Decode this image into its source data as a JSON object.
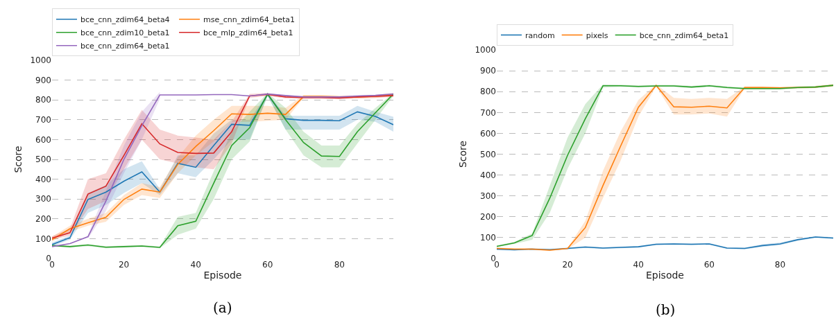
{
  "chart_data": [
    {
      "type": "line",
      "xlabel": "Episode",
      "ylabel": "Score",
      "annotations": [
        "(a)"
      ],
      "x": [
        0,
        5,
        10,
        15,
        20,
        25,
        30,
        35,
        40,
        45,
        50,
        55,
        60,
        65,
        70,
        75,
        80,
        85,
        90,
        95
      ],
      "xlim": [
        0,
        95
      ],
      "ylim": [
        0,
        1000
      ],
      "xticks": [
        0,
        20,
        40,
        60,
        80
      ],
      "yticks": [
        0,
        100,
        200,
        300,
        400,
        500,
        600,
        700,
        800,
        900,
        1000
      ],
      "grid": "y",
      "legend": "top",
      "series": [
        {
          "name": "bce_cnn_zdim64_beta4",
          "color": "#1f77b4",
          "values": [
            70,
            105,
            298,
            335,
            390,
            437,
            335,
            480,
            460,
            570,
            677,
            672,
            828,
            705,
            697,
            697,
            695,
            740,
            717,
            675
          ],
          "lower": [
            60,
            95,
            230,
            270,
            330,
            380,
            320,
            430,
            410,
            500,
            600,
            600,
            820,
            650,
            650,
            650,
            650,
            700,
            690,
            640
          ],
          "upper": [
            80,
            115,
            330,
            370,
            450,
            490,
            350,
            520,
            520,
            630,
            700,
            700,
            835,
            720,
            720,
            720,
            720,
            770,
            740,
            715
          ]
        },
        {
          "name": "mse_cnn_zdim64_beta1",
          "color": "#ff7f0e",
          "values": [
            95,
            150,
            180,
            208,
            298,
            350,
            335,
            475,
            565,
            645,
            730,
            727,
            733,
            727,
            817,
            817,
            815,
            815,
            818,
            828
          ],
          "lower": [
            85,
            135,
            165,
            185,
            270,
            320,
            305,
            430,
            520,
            590,
            690,
            690,
            695,
            700,
            810,
            810,
            808,
            808,
            810,
            820
          ],
          "upper": [
            110,
            165,
            200,
            230,
            320,
            380,
            360,
            510,
            620,
            700,
            770,
            770,
            770,
            760,
            825,
            825,
            822,
            822,
            825,
            835
          ]
        },
        {
          "name": "bce_cnn_zdim10_beta1",
          "color": "#2ca02c",
          "values": [
            65,
            60,
            68,
            57,
            60,
            63,
            56,
            165,
            188,
            380,
            570,
            660,
            830,
            700,
            585,
            517,
            515,
            640,
            735,
            830
          ],
          "lower": [
            60,
            55,
            62,
            52,
            55,
            58,
            52,
            120,
            150,
            300,
            500,
            590,
            820,
            650,
            520,
            460,
            460,
            580,
            700,
            820
          ],
          "upper": [
            70,
            65,
            72,
            62,
            65,
            68,
            60,
            210,
            230,
            440,
            640,
            740,
            835,
            760,
            640,
            570,
            570,
            680,
            760,
            835
          ]
        },
        {
          "name": "bce_mlp_zdim64_beta1",
          "color": "#d62728",
          "values": [
            103,
            130,
            325,
            365,
            520,
            680,
            578,
            535,
            530,
            532,
            640,
            820,
            828,
            815,
            812,
            812,
            810,
            815,
            818,
            822
          ],
          "lower": [
            95,
            115,
            250,
            290,
            450,
            600,
            500,
            480,
            460,
            450,
            580,
            810,
            820,
            808,
            805,
            805,
            803,
            808,
            810,
            815
          ],
          "upper": [
            112,
            150,
            400,
            430,
            600,
            750,
            650,
            620,
            610,
            600,
            690,
            830,
            835,
            822,
            820,
            820,
            818,
            822,
            825,
            830
          ]
        },
        {
          "name": "bce_cnn_zdim64_beta1",
          "color": "#9467bd",
          "values": [
            60,
            75,
            110,
            290,
            500,
            670,
            825,
            825,
            825,
            827,
            827,
            820,
            830,
            822,
            815,
            815,
            815,
            820,
            823,
            830
          ],
          "lower": [
            null,
            null,
            100,
            240,
            430,
            600,
            805,
            null,
            null,
            null,
            null,
            null,
            null,
            null,
            null,
            null,
            null,
            null,
            null,
            null
          ],
          "upper": [
            null,
            null,
            120,
            340,
            570,
            740,
            840,
            null,
            null,
            null,
            null,
            null,
            null,
            null,
            null,
            null,
            null,
            null,
            null,
            null
          ]
        }
      ]
    },
    {
      "type": "line",
      "xlabel": "Episode",
      "ylabel": "Score",
      "annotations": [
        "(b)"
      ],
      "x": [
        0,
        5,
        10,
        15,
        20,
        25,
        30,
        35,
        40,
        45,
        50,
        55,
        60,
        65,
        70,
        75,
        80,
        85,
        90,
        95
      ],
      "xlim": [
        0,
        95
      ],
      "ylim": [
        0,
        1000
      ],
      "xticks": [
        0,
        20,
        40,
        60,
        80
      ],
      "yticks": [
        0,
        100,
        200,
        300,
        400,
        500,
        600,
        700,
        800,
        900,
        1000
      ],
      "grid": "y",
      "legend": "top",
      "series": [
        {
          "name": "random",
          "color": "#1f77b4",
          "values": [
            45,
            42,
            45,
            42,
            48,
            55,
            50,
            53,
            56,
            68,
            70,
            68,
            70,
            50,
            48,
            62,
            70,
            90,
            103,
            98
          ],
          "lower": [
            40,
            38,
            41,
            38,
            44,
            51,
            46,
            49,
            52,
            64,
            66,
            64,
            66,
            46,
            44,
            56,
            64,
            85,
            99,
            94
          ],
          "upper": [
            50,
            46,
            49,
            46,
            52,
            59,
            54,
            57,
            60,
            72,
            74,
            72,
            74,
            54,
            52,
            68,
            76,
            95,
            107,
            102
          ]
        },
        {
          "name": "pixels",
          "color": "#ff7f0e",
          "values": [
            48,
            45,
            45,
            40,
            48,
            148,
            350,
            540,
            725,
            830,
            727,
            725,
            730,
            722,
            820,
            820,
            818,
            820,
            822,
            830
          ],
          "lower": [
            44,
            41,
            41,
            36,
            45,
            100,
            290,
            470,
            680,
            825,
            690,
            690,
            695,
            680,
            815,
            815,
            813,
            815,
            817,
            825
          ],
          "upper": [
            52,
            49,
            49,
            44,
            50,
            180,
            420,
            610,
            760,
            835,
            770,
            765,
            770,
            765,
            825,
            825,
            823,
            825,
            827,
            835
          ]
        },
        {
          "name": "bce_cnn_zdim64_beta1",
          "color": "#2ca02c",
          "values": [
            58,
            75,
            110,
            290,
            495,
            670,
            828,
            828,
            825,
            827,
            827,
            822,
            828,
            820,
            815,
            815,
            815,
            820,
            822,
            830
          ],
          "lower": [
            54,
            70,
            90,
            220,
            430,
            600,
            820,
            823,
            820,
            822,
            822,
            817,
            823,
            815,
            810,
            810,
            810,
            815,
            817,
            825
          ],
          "upper": [
            62,
            80,
            120,
            350,
            580,
            740,
            835,
            833,
            830,
            832,
            832,
            827,
            833,
            825,
            820,
            820,
            820,
            825,
            827,
            835
          ]
        }
      ]
    }
  ]
}
